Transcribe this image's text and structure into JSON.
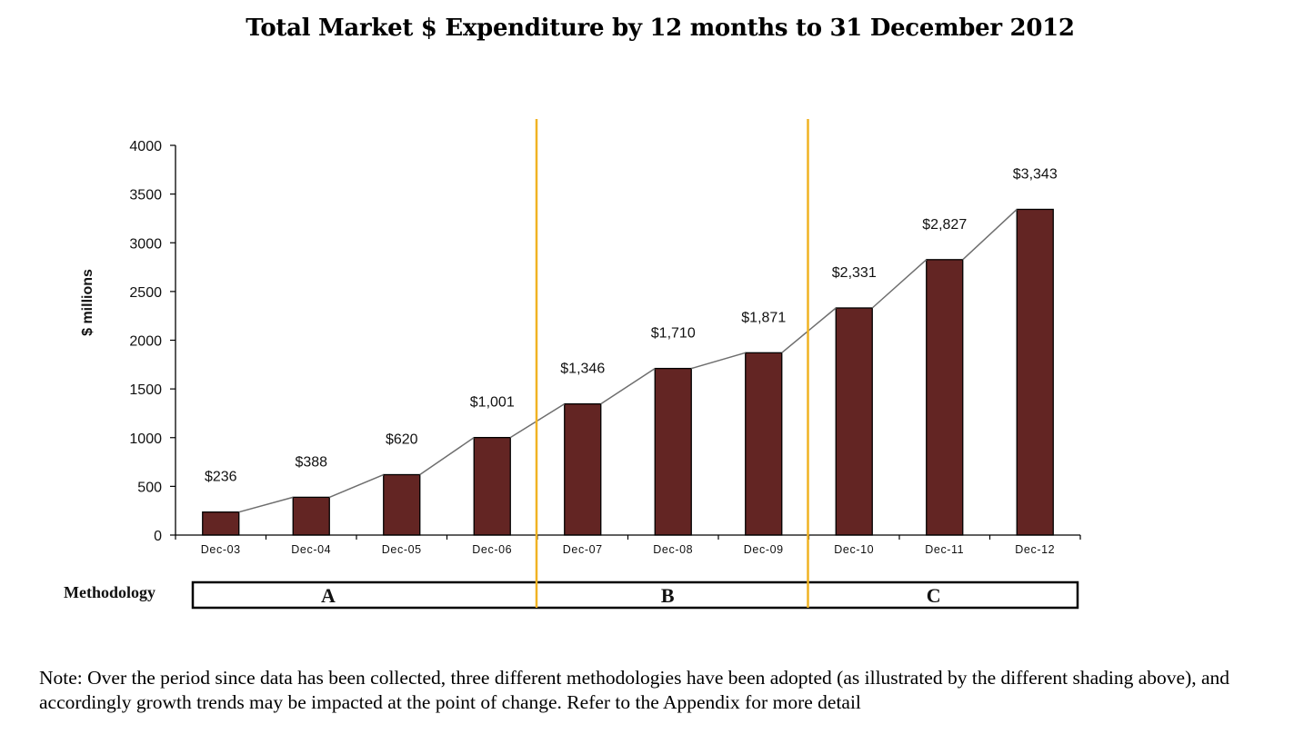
{
  "chart_data": {
    "type": "bar",
    "title": "Total Market $ Expenditure by 12 months to 31 December 2012",
    "xlabel": "",
    "ylabel": "$ millions",
    "ylim": [
      0,
      4000
    ],
    "yticks": [
      "0",
      "500",
      "1000",
      "1500",
      "2000",
      "2500",
      "3000",
      "3500",
      "4000"
    ],
    "ytick_values": [
      0,
      500,
      1000,
      1500,
      2000,
      2500,
      3000,
      3500,
      4000
    ],
    "grid": false,
    "categories": [
      "Dec-03",
      "Dec-04",
      "Dec-05",
      "Dec-06",
      "Dec-07",
      "Dec-08",
      "Dec-09",
      "Dec-10",
      "Dec-11",
      "Dec-12"
    ],
    "values": [
      236,
      388,
      620,
      1001,
      1346,
      1710,
      1871,
      2331,
      2827,
      3343
    ],
    "data_labels": [
      "$236",
      "$388",
      "$620",
      "$1,001",
      "$1,346",
      "$1,710",
      "$1,871",
      "$2,331",
      "$2,827",
      "$3,343"
    ],
    "trend_line": true,
    "colors": {
      "bar": "#632523",
      "line": "#6e6e6e",
      "divider": "#f0b323",
      "axis": "#000000"
    },
    "methodology": {
      "label": "Methodology",
      "segments": [
        {
          "name": "A",
          "from": "Dec-03",
          "to": "Dec-06"
        },
        {
          "name": "B",
          "from": "Dec-07",
          "to": "Dec-09"
        },
        {
          "name": "C",
          "from": "Dec-10",
          "to": "Dec-12"
        }
      ],
      "dividers_after": [
        "Dec-06",
        "Dec-09"
      ]
    }
  },
  "note": "Note: Over the period since data has been collected, three different methodologies have been adopted (as illustrated by the different shading above), and accordingly growth trends may be impacted at the point of change. Refer to the Appendix for more detail"
}
